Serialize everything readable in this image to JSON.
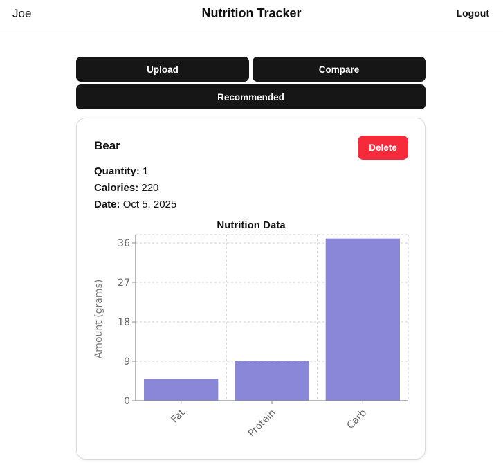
{
  "header": {
    "user": "Joe",
    "title": "Nutrition Tracker",
    "logout_label": "Logout"
  },
  "actions": {
    "upload_label": "Upload",
    "compare_label": "Compare",
    "recommended_label": "Recommended"
  },
  "item": {
    "name": "Bear",
    "delete_label": "Delete",
    "quantity_label": "Quantity:",
    "quantity": "1",
    "calories_label": "Calories:",
    "calories": "220",
    "date_label": "Date:",
    "date": "Oct 5, 2025"
  },
  "colors": {
    "bar": "#8b87d8",
    "delete": "#f52a3a",
    "button": "#161616"
  },
  "chart_data": {
    "type": "bar",
    "title": "Nutrition Data",
    "ylabel": "Amount (grams)",
    "xlabel": "",
    "categories": [
      "Fat",
      "Protein",
      "Carb"
    ],
    "values": [
      5,
      9,
      37
    ],
    "yticks": [
      0,
      9,
      18,
      27,
      36
    ],
    "ylim": [
      0,
      36
    ],
    "grid": true
  }
}
